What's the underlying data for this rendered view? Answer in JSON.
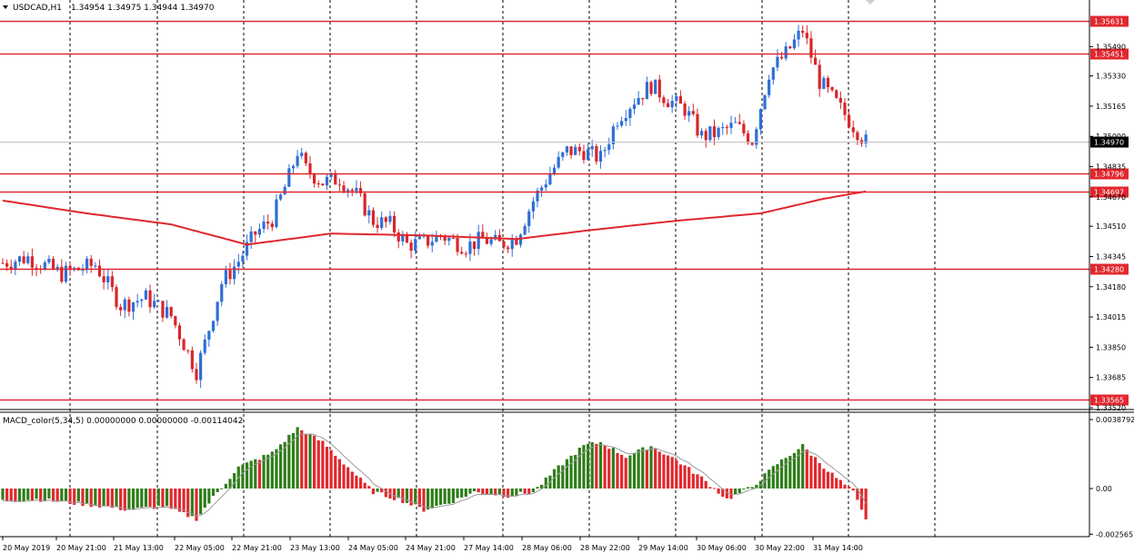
{
  "header": {
    "arrow_icon": "triangle-down-icon",
    "symbol": "USDCAD,H1",
    "ohlc": "1.34954 1.34975 1.34944 1.34970"
  },
  "indicator": {
    "label": "MACD_color(5,34,5) 0.00000000 0.00000000 -0.00114042"
  },
  "colors": {
    "bull": "#2f6fd6",
    "bear": "#d8262a",
    "hline": "#e0282e",
    "ma": "#e0282e",
    "macd_up": "#2e7d18",
    "macd_down": "#e0282e",
    "grid": "#000000"
  },
  "price_scale": {
    "ticks": [
      "1.35490",
      "1.35330",
      "1.35165",
      "1.35000",
      "1.34835",
      "1.34670",
      "1.34510",
      "1.34345",
      "1.34180",
      "1.34015",
      "1.33850",
      "1.33685",
      "1.33520"
    ]
  },
  "indicator_scale": {
    "ticks": [
      "0.0038792",
      "0.00",
      "-0.002565"
    ]
  },
  "price_levels": [
    {
      "label": "1.35631",
      "value": 1.35631
    },
    {
      "label": "1.35451",
      "value": 1.35451
    },
    {
      "label": "1.34970",
      "value": 1.3497,
      "kind": "current"
    },
    {
      "label": "1.34796",
      "value": 1.34796
    },
    {
      "label": "1.34697",
      "value": 1.34697
    },
    {
      "label": "1.34280",
      "value": 1.3428
    },
    {
      "label": "1.33565",
      "value": 1.33565
    }
  ],
  "time_scale": {
    "labels": [
      "20 May 2019",
      "20 May 21:00",
      "21 May 13:00",
      "22 May 05:00",
      "22 May 21:00",
      "23 May 13:00",
      "24 May 05:00",
      "24 May 21:00",
      "27 May 14:00",
      "28 May 06:00",
      "28 May 22:00",
      "29 May 14:00",
      "30 May 06:00",
      "30 May 22:00",
      "31 May 14:00"
    ]
  },
  "chart_data": {
    "type": "candlestick",
    "symbol": "USDCAD",
    "timeframe": "H1",
    "ylim": [
      1.3352,
      1.3566
    ],
    "macd_ylim": [
      -0.002565,
      0.0038792
    ],
    "close_keypoints": [
      [
        0,
        1.3431
      ],
      [
        6,
        1.3434
      ],
      [
        14,
        1.3425
      ],
      [
        22,
        1.343
      ],
      [
        28,
        1.3408
      ],
      [
        34,
        1.3412
      ],
      [
        40,
        1.3402
      ],
      [
        46,
        1.3372
      ],
      [
        48,
        1.3387
      ],
      [
        52,
        1.342
      ],
      [
        56,
        1.3432
      ],
      [
        60,
        1.3447
      ],
      [
        64,
        1.3455
      ],
      [
        68,
        1.3478
      ],
      [
        70,
        1.3492
      ],
      [
        72,
        1.3482
      ],
      [
        76,
        1.3475
      ],
      [
        80,
        1.3477
      ],
      [
        84,
        1.3468
      ],
      [
        88,
        1.3454
      ],
      [
        92,
        1.3452
      ],
      [
        96,
        1.3441
      ],
      [
        100,
        1.3442
      ],
      [
        104,
        1.3446
      ],
      [
        110,
        1.344
      ],
      [
        114,
        1.3444
      ],
      [
        118,
        1.3441
      ],
      [
        122,
        1.3445
      ],
      [
        126,
        1.3465
      ],
      [
        130,
        1.348
      ],
      [
        134,
        1.3492
      ],
      [
        138,
        1.3492
      ],
      [
        142,
        1.3488
      ],
      [
        146,
        1.351
      ],
      [
        150,
        1.352
      ],
      [
        154,
        1.3528
      ],
      [
        158,
        1.352
      ],
      [
        162,
        1.3515
      ],
      [
        166,
        1.35
      ],
      [
        170,
        1.3502
      ],
      [
        174,
        1.3506
      ],
      [
        178,
        1.3498
      ],
      [
        182,
        1.3535
      ],
      [
        186,
        1.3545
      ],
      [
        190,
        1.3558
      ],
      [
        194,
        1.353
      ],
      [
        198,
        1.3518
      ],
      [
        202,
        1.3506
      ],
      [
        205,
        1.3497
      ]
    ],
    "ma_keypoints": [
      [
        0,
        1.3465
      ],
      [
        20,
        1.3458
      ],
      [
        40,
        1.3452
      ],
      [
        58,
        1.3441
      ],
      [
        78,
        1.3447
      ],
      [
        100,
        1.3446
      ],
      [
        122,
        1.3444
      ],
      [
        140,
        1.3449
      ],
      [
        160,
        1.3454
      ],
      [
        180,
        1.3458
      ],
      [
        195,
        1.3466
      ],
      [
        205,
        1.347
      ]
    ],
    "macd_keypoints": [
      [
        0,
        -0.0007
      ],
      [
        8,
        -0.0006
      ],
      [
        16,
        -0.0008
      ],
      [
        24,
        -0.001
      ],
      [
        30,
        -0.0012
      ],
      [
        38,
        -0.001
      ],
      [
        46,
        -0.0017
      ],
      [
        50,
        -0.0005
      ],
      [
        56,
        0.0012
      ],
      [
        64,
        0.002
      ],
      [
        70,
        0.0034
      ],
      [
        76,
        0.0026
      ],
      [
        82,
        0.0012
      ],
      [
        88,
        -0.0002
      ],
      [
        94,
        -0.0006
      ],
      [
        100,
        -0.0012
      ],
      [
        106,
        -0.0008
      ],
      [
        112,
        -0.0002
      ],
      [
        120,
        -0.0004
      ],
      [
        126,
        -0.0002
      ],
      [
        132,
        0.0012
      ],
      [
        138,
        0.0024
      ],
      [
        142,
        0.0026
      ],
      [
        148,
        0.0018
      ],
      [
        154,
        0.0024
      ],
      [
        160,
        0.0016
      ],
      [
        166,
        0.0006
      ],
      [
        172,
        -0.0006
      ],
      [
        178,
        0.0001
      ],
      [
        184,
        0.0014
      ],
      [
        190,
        0.0024
      ],
      [
        196,
        0.001
      ],
      [
        202,
        -0.0002
      ],
      [
        205,
        -0.0018
      ]
    ]
  }
}
